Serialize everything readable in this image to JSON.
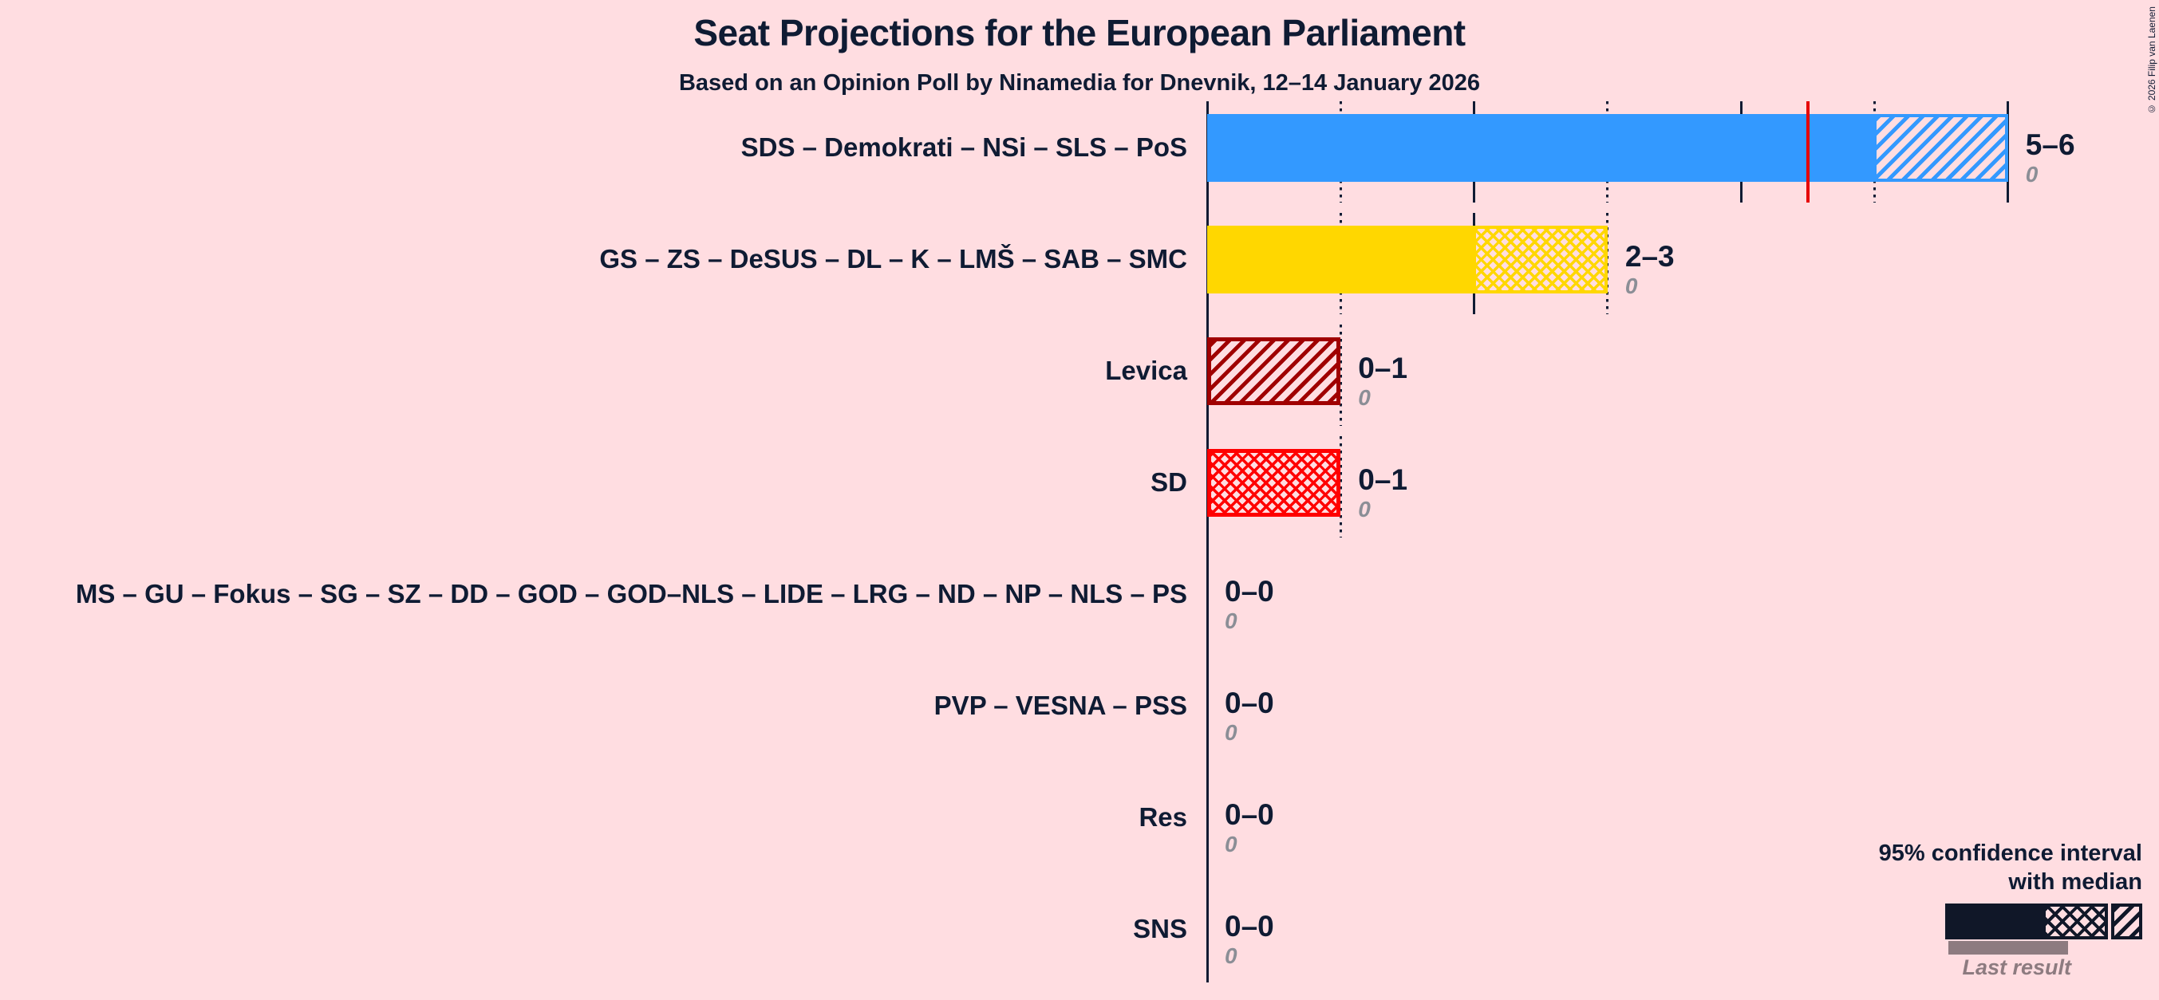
{
  "copyright": "© 2026 Filip van Laenen",
  "chart_data": {
    "type": "bar",
    "orientation": "horizontal",
    "title": "Seat Projections for the European Parliament",
    "subtitle": "Based on an Opinion Poll by Ninamedia for Dnevnik, 12–14 January 2026",
    "x_axis": {
      "unit": "seats",
      "min": 0,
      "max": 6,
      "tick_interval": 1,
      "tick_labels_visible": false,
      "gridline_style": "dotted at odd seats, solid at even seats, drawn per row up to each row's CI maximum"
    },
    "reference_line": {
      "seats": 4.5,
      "row_index": 0,
      "color": "#e60000",
      "meaning": "median marker"
    },
    "rows": [
      {
        "label": "SDS – Demokrati – NSi – SLS – PoS",
        "ci_label": "5–6",
        "ci_low": 5,
        "ci_high": 6,
        "last_result": 0,
        "last_result_label": "0",
        "color": "#3399ff",
        "hatch": "diagonal"
      },
      {
        "label": "GS – ZS – DeSUS – DL – K – LMŠ – SAB – SMC",
        "ci_label": "2–3",
        "ci_low": 2,
        "ci_high": 3,
        "last_result": 0,
        "last_result_label": "0",
        "color": "#ffd700",
        "hatch": "cross"
      },
      {
        "label": "Levica",
        "ci_label": "0–1",
        "ci_low": 0,
        "ci_high": 1,
        "last_result": 0,
        "last_result_label": "0",
        "color": "#a00000",
        "hatch": "diagonal"
      },
      {
        "label": "SD",
        "ci_label": "0–1",
        "ci_low": 0,
        "ci_high": 1,
        "last_result": 0,
        "last_result_label": "0",
        "color": "#ff0000",
        "hatch": "cross"
      },
      {
        "label": "MS – GU – Fokus – SG – SZ – DD – GOD – GOD–NLS – LIDE – LRG – ND – NP – NLS – PS",
        "ci_label": "0–0",
        "ci_low": 0,
        "ci_high": 0,
        "last_result": 0,
        "last_result_label": "0",
        "color": null,
        "hatch": null
      },
      {
        "label": "PVP – VESNA – PSS",
        "ci_label": "0–0",
        "ci_low": 0,
        "ci_high": 0,
        "last_result": 0,
        "last_result_label": "0",
        "color": null,
        "hatch": null
      },
      {
        "label": "Res",
        "ci_label": "0–0",
        "ci_low": 0,
        "ci_high": 0,
        "last_result": 0,
        "last_result_label": "0",
        "color": null,
        "hatch": null
      },
      {
        "label": "SNS",
        "ci_label": "0–0",
        "ci_low": 0,
        "ci_high": 0,
        "last_result": 0,
        "last_result_label": "0",
        "color": null,
        "hatch": null
      }
    ],
    "legend": {
      "ci_line1": "95% confidence interval",
      "ci_line2": "with median",
      "last_result": "Last result"
    },
    "colors": {
      "background": "#ffdde1",
      "text": "#0f1b33",
      "grid": "#0f1b33",
      "median_line": "#e60000",
      "last_result_gray": "#8d7b80",
      "value_zero_gray": "#8b8e96",
      "legend_bar": "#101728"
    }
  }
}
